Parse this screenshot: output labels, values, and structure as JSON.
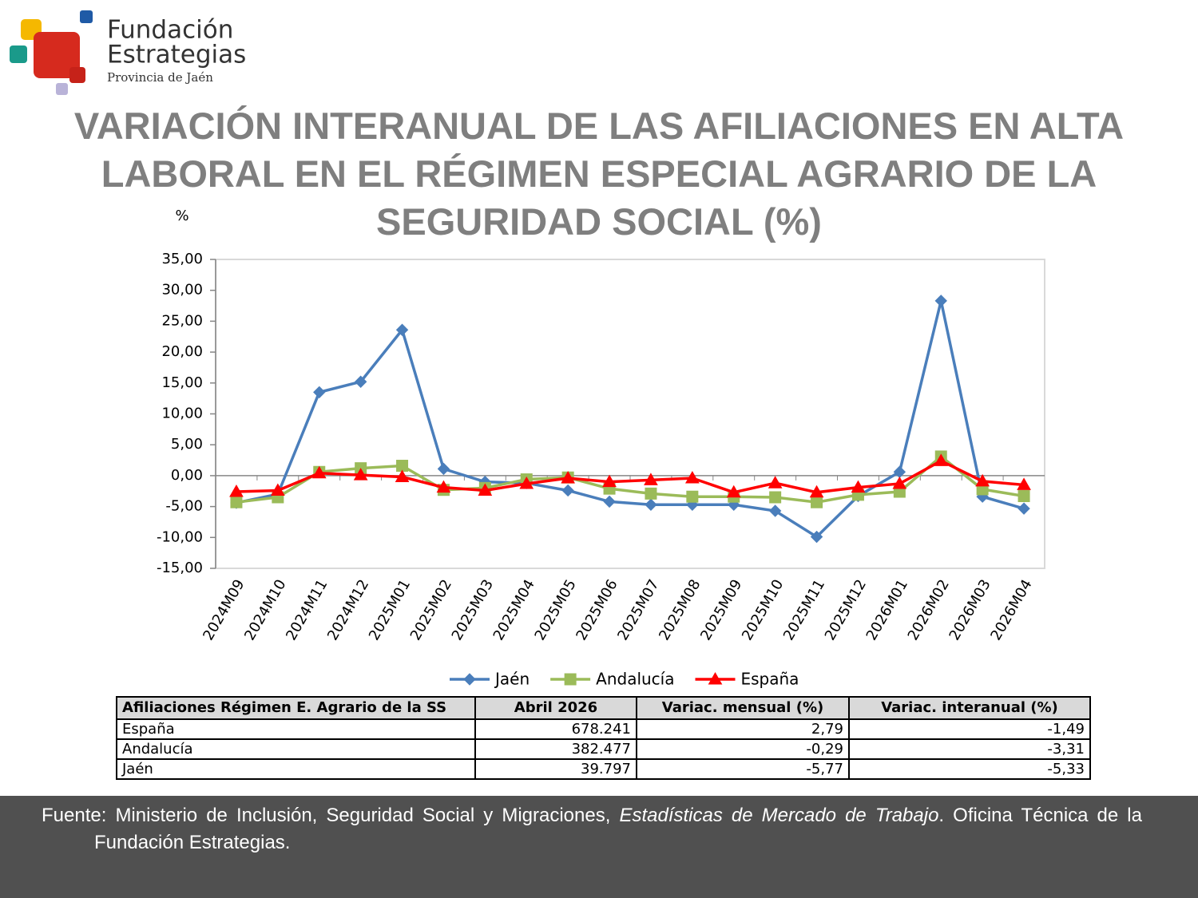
{
  "logo": {
    "name": "Fundación",
    "name2": "Estrategias",
    "subtitle": "Provincia de Jaén"
  },
  "chart_data": {
    "type": "line",
    "title": "VARIACIÓN INTERANUAL DE LAS AFILIACIONES EN ALTA LABORAL EN EL RÉGIMEN ESPECIAL AGRARIO DE LA SEGURIDAD SOCIAL (%)",
    "y_label": "%",
    "categories": [
      "2024M09",
      "2024M10",
      "2024M11",
      "2024M12",
      "2025M01",
      "2025M02",
      "2025M03",
      "2025M04",
      "2025M05",
      "2025M06",
      "2025M07",
      "2025M08",
      "2025M09",
      "2025M10",
      "2025M11",
      "2025M12",
      "2026M01",
      "2026M02",
      "2026M03",
      "2026M04"
    ],
    "series": [
      {
        "name": "Jaén",
        "color": "#4a7ebb",
        "marker": "diamond",
        "values": [
          -4.4,
          -3.0,
          13.5,
          15.2,
          23.6,
          1.1,
          -1.0,
          -1.2,
          -2.4,
          -4.2,
          -4.7,
          -4.7,
          -4.7,
          -5.7,
          -9.9,
          -3.3,
          0.6,
          28.3,
          -3.4,
          -5.33
        ]
      },
      {
        "name": "Andalucía",
        "color": "#9bbb59",
        "marker": "square",
        "values": [
          -4.3,
          -3.5,
          0.6,
          1.2,
          1.6,
          -2.3,
          -2.0,
          -0.6,
          -0.3,
          -2.1,
          -2.9,
          -3.4,
          -3.4,
          -3.5,
          -4.3,
          -3.1,
          -2.6,
          3.1,
          -2.2,
          -3.31
        ]
      },
      {
        "name": "España",
        "color": "#ff0000",
        "marker": "triangle",
        "values": [
          -2.6,
          -2.4,
          0.4,
          0.1,
          -0.2,
          -1.9,
          -2.4,
          -1.3,
          -0.4,
          -1.0,
          -0.7,
          -0.4,
          -2.7,
          -1.2,
          -2.7,
          -1.9,
          -1.3,
          2.4,
          -0.9,
          -1.49
        ]
      }
    ],
    "ylim": [
      -15,
      35
    ],
    "yticks": [
      {
        "value": 35,
        "label": "35,00"
      },
      {
        "value": 30,
        "label": "30,00"
      },
      {
        "value": 25,
        "label": "25,00"
      },
      {
        "value": 20,
        "label": "20,00"
      },
      {
        "value": 15,
        "label": "15,00"
      },
      {
        "value": 10,
        "label": "10,00"
      },
      {
        "value": 5,
        "label": "5,00"
      },
      {
        "value": 0,
        "label": "0,00"
      },
      {
        "value": -5,
        "label": "-5,00"
      },
      {
        "value": -10,
        "label": "-10,00"
      },
      {
        "value": -15,
        "label": "-15,00"
      }
    ],
    "grid": false,
    "legend": "bottom"
  },
  "table": {
    "header": [
      "Afiliaciones Régimen E. Agrario de la SS",
      "Abril 2026",
      "Variac. mensual (%)",
      "Variac. interanual (%)"
    ],
    "rows": [
      [
        "España",
        "678.241",
        "2,79",
        "-1,49"
      ],
      [
        "Andalucía",
        "382.477",
        "-0,29",
        "-3,31"
      ],
      [
        "Jaén",
        "39.797",
        "-5,77",
        "-5,33"
      ]
    ]
  },
  "footer": {
    "text": "Fuente: Ministerio de Inclusión, Seguridad Social y Migraciones, ",
    "italic": "Estadísticas de Mercado de Trabajo",
    "text2": ". Oficina Técnica de la Fundación Estrategias."
  }
}
